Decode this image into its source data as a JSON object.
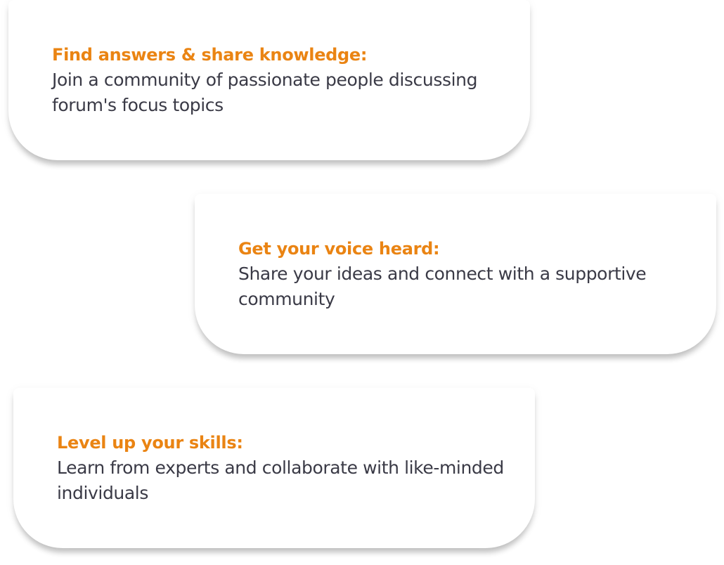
{
  "cards": [
    {
      "title": "Find answers & share knowledge:",
      "description": "Join a community of passionate people discussing forum's focus topics"
    },
    {
      "title": "Get your voice heard:",
      "description": "Share your ideas and connect with a supportive community"
    },
    {
      "title": "Level up your skills:",
      "description": "Learn from experts and collaborate with like-minded individuals"
    }
  ],
  "colors": {
    "accent": "#ea8413",
    "text": "#3a3a46",
    "background": "#ffffff"
  }
}
